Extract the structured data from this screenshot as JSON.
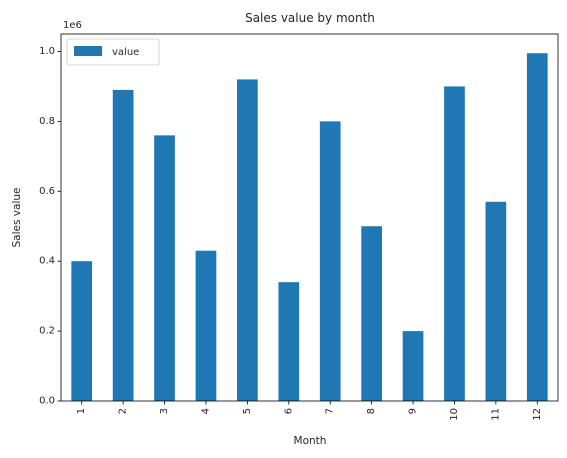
{
  "chart_data": {
    "type": "bar",
    "title": "Sales value by month",
    "xlabel": "Month",
    "ylabel": "Sales value",
    "y_multiplier_label": "1e6",
    "categories": [
      "1",
      "2",
      "3",
      "4",
      "5",
      "6",
      "7",
      "8",
      "9",
      "10",
      "11",
      "12"
    ],
    "series": [
      {
        "name": "value",
        "values": [
          400000,
          890000,
          760000,
          430000,
          920000,
          340000,
          800000,
          500000,
          200000,
          900000,
          570000,
          995000
        ],
        "color": "#1f77b4"
      }
    ],
    "ylim": [
      0,
      1.05
    ],
    "y_scale": 1000000,
    "yticks": [
      "0.0",
      "0.2",
      "0.4",
      "0.6",
      "0.8",
      "1.0"
    ],
    "legend": {
      "position": "top-left",
      "entries": [
        "value"
      ]
    },
    "grid": false,
    "x_tick_rotation": "vertical"
  }
}
